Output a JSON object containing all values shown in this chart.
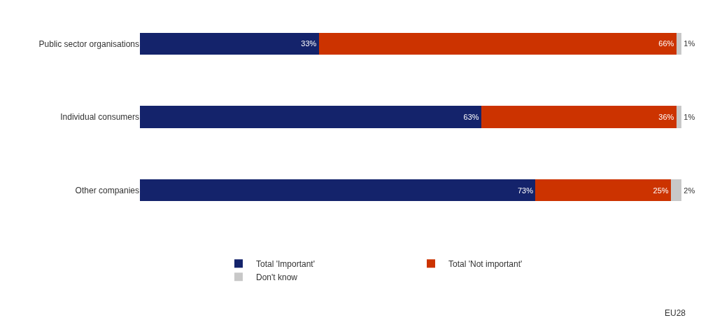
{
  "chart_data": {
    "type": "bar",
    "orientation": "horizontal",
    "stacked": true,
    "categories": [
      "Public sector organisations",
      "Individual consumers",
      "Other companies"
    ],
    "series": [
      {
        "name": "Total 'Important'",
        "color": "#14236b",
        "values": [
          33,
          63,
          73
        ],
        "value_labels": [
          "33%",
          "63%",
          "73%"
        ]
      },
      {
        "name": "Total 'Not important'",
        "color": "#cc3300",
        "values": [
          66,
          36,
          25
        ],
        "value_labels": [
          "66%",
          "36%",
          "25%"
        ]
      },
      {
        "name": "Don't know",
        "color": "#c8c8c8",
        "values": [
          1,
          1,
          2
        ],
        "value_labels": [
          "1%",
          "1%",
          "2%"
        ]
      }
    ],
    "legend": "bottom",
    "annotations": [
      "EU28"
    ]
  }
}
